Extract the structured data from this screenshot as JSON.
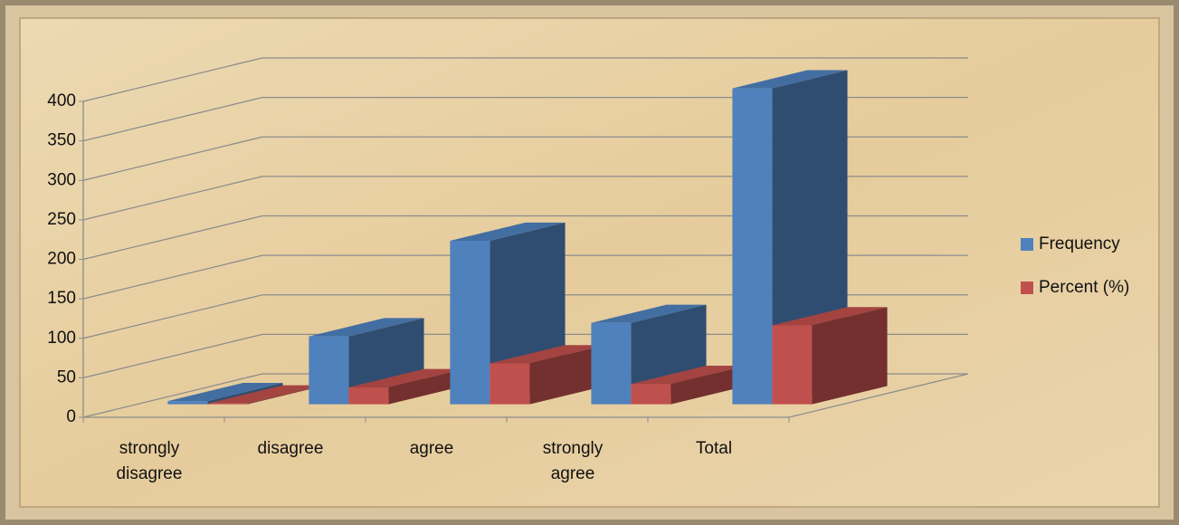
{
  "chart_data": {
    "type": "bar3d",
    "categories": [
      "strongly disagree",
      "disagree",
      "agree",
      "strongly agree",
      "Total"
    ],
    "series": [
      {
        "name": "Frequency",
        "color": "#4f81bd",
        "values": [
          4,
          86,
          207,
          103,
          400
        ]
      },
      {
        "name": "Percent (%)",
        "color": "#c0504d",
        "values": [
          1,
          21.5,
          51.8,
          25.7,
          100
        ]
      }
    ],
    "ylim": [
      0,
      400
    ],
    "yticks": [
      0,
      50,
      100,
      150,
      200,
      250,
      300,
      350,
      400
    ],
    "grid": true,
    "legend": "right"
  }
}
